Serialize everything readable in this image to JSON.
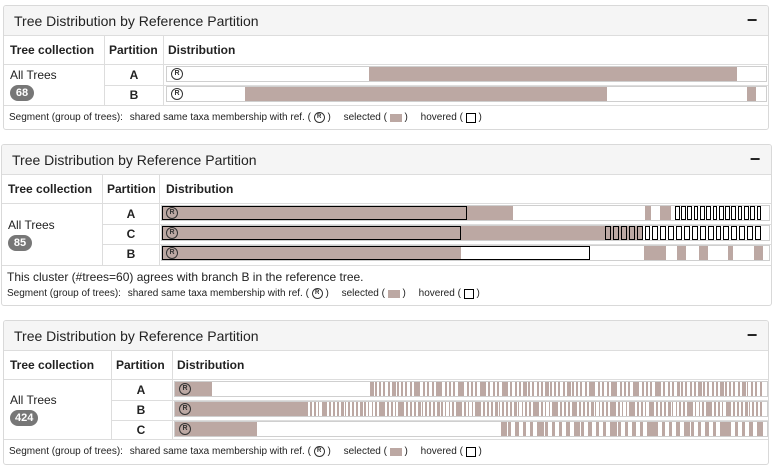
{
  "colors": {
    "selected": "#bca8a3",
    "border": "#d9d9d9",
    "header_bg": "#f5f5f5",
    "badge": "#777777"
  },
  "icons": {
    "collapse": "minus-icon",
    "reference": "circled-r-icon",
    "hovered": "square-outline-icon"
  },
  "panels": [
    {
      "title": "Tree Distribution by Reference Partition",
      "collapse_label": "−",
      "headers": {
        "collection": "Tree collection",
        "partition": "Partition",
        "distribution": "Distribution"
      },
      "collection": {
        "label": "All Trees",
        "count": "68"
      },
      "rows": [
        {
          "partition": "A",
          "segments": [
            {
              "start": 0.338,
              "end": 0.952,
              "type": "selected"
            }
          ],
          "ref_end": 0.0
        },
        {
          "partition": "B",
          "segments": [
            {
              "start": 0.131,
              "end": 0.735,
              "type": "selected"
            },
            {
              "start": 0.969,
              "end": 0.983,
              "type": "selected"
            }
          ],
          "ref_end": 0.0
        }
      ],
      "note": "",
      "legend": {
        "prefix": "Segment (group of trees):",
        "shared": "shared same taxa membership with ref. (",
        "shared_end": ")",
        "selected": "selected (",
        "selected_end": ")",
        "hovered": "hovered (",
        "hovered_end": ")",
        "ref_glyph": "R"
      }
    },
    {
      "title": "Tree Distribution by Reference Partition",
      "collapse_label": "−",
      "headers": {
        "collection": "Tree collection",
        "partition": "Partition",
        "distribution": "Distribution"
      },
      "collection": {
        "label": "All Trees",
        "count": "85"
      },
      "rows": [
        {
          "partition": "A",
          "segments": [
            {
              "start": 0.0,
              "end": 0.579,
              "type": "selected"
            },
            {
              "start": 0.0,
              "end": 0.502,
              "type": "hovered"
            },
            {
              "start": 0.795,
              "end": 0.806,
              "type": "selected"
            },
            {
              "start": 0.82,
              "end": 0.838,
              "type": "selected"
            }
          ],
          "ticks": {
            "start": 0.845,
            "end": 0.99,
            "count": 14,
            "hovered": true
          }
        },
        {
          "partition": "C",
          "segments": [
            {
              "start": 0.0,
              "end": 0.791,
              "type": "selected"
            },
            {
              "start": 0.0,
              "end": 0.492,
              "type": "hovered"
            }
          ],
          "ticks": {
            "start": 0.73,
            "end": 0.99,
            "count": 20,
            "hovered": true
          }
        },
        {
          "partition": "B",
          "segments": [
            {
              "start": 0.0,
              "end": 0.492,
              "type": "selected"
            },
            {
              "start": 0.0,
              "end": 0.705,
              "type": "hovered"
            },
            {
              "start": 0.794,
              "end": 0.83,
              "type": "selected"
            },
            {
              "start": 0.849,
              "end": 0.863,
              "type": "selected"
            },
            {
              "start": 0.884,
              "end": 0.899,
              "type": "selected"
            },
            {
              "start": 0.932,
              "end": 0.94,
              "type": "selected"
            },
            {
              "start": 0.975,
              "end": 0.99,
              "type": "selected"
            }
          ]
        }
      ],
      "note": "This cluster (#trees=60) agrees with branch B in the reference tree.",
      "legend": {
        "prefix": "Segment (group of trees):",
        "shared": "shared same taxa membership with ref. (",
        "shared_end": ")",
        "selected": "selected (",
        "selected_end": ")",
        "hovered": "hovered (",
        "hovered_end": ")",
        "ref_glyph": "R"
      }
    },
    {
      "title": "Tree Distribution by Reference Partition",
      "collapse_label": "−",
      "headers": {
        "collection": "Tree collection",
        "partition": "Partition",
        "distribution": "Distribution"
      },
      "collection": {
        "label": "All Trees",
        "count": "424"
      },
      "rows": [
        {
          "partition": "A",
          "segments": [
            {
              "start": 0.0,
              "end": 0.062,
              "type": "selected"
            }
          ],
          "ticks": {
            "start": 0.33,
            "end": 0.995,
            "count": 90,
            "hovered": false
          }
        },
        {
          "partition": "B",
          "segments": [
            {
              "start": 0.0,
              "end": 0.215,
              "type": "selected"
            }
          ],
          "ticks": {
            "start": 0.215,
            "end": 0.995,
            "count": 120,
            "hovered": false
          }
        },
        {
          "partition": "C",
          "segments": [
            {
              "start": 0.0,
              "end": 0.138,
              "type": "selected"
            }
          ],
          "ticks": {
            "start": 0.55,
            "end": 0.995,
            "count": 36,
            "hovered": false
          }
        }
      ],
      "note": "",
      "legend": {
        "prefix": "Segment (group of trees):",
        "shared": "shared same taxa membership with ref. (",
        "shared_end": ")",
        "selected": "selected (",
        "selected_end": ")",
        "hovered": "hovered (",
        "hovered_end": ")",
        "ref_glyph": "R"
      }
    }
  ]
}
